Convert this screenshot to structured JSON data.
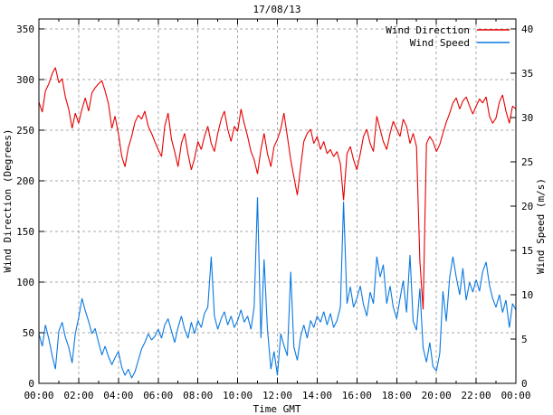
{
  "title": "17/08/13",
  "axes": {
    "x_label": "Time GMT",
    "y_left_label": "Wind Direction (Degrees)",
    "y_right_label": "Wind Speed (m/s)",
    "x_tick_hours": [
      0,
      2,
      4,
      6,
      8,
      10,
      12,
      14,
      16,
      18,
      20,
      22,
      24
    ],
    "x_tick_labels": [
      "00:00",
      "02:00",
      "04:00",
      "06:00",
      "08:00",
      "10:00",
      "12:00",
      "14:00",
      "16:00",
      "18:00",
      "20:00",
      "22:00",
      "00:00"
    ],
    "x_minor_tick_hours": [
      1,
      3,
      5,
      7,
      9,
      11,
      13,
      15,
      17,
      19,
      21,
      23
    ],
    "y_left_ticks": [
      0,
      50,
      100,
      150,
      200,
      250,
      300,
      350
    ],
    "y_right_ticks": [
      0,
      5,
      10,
      15,
      20,
      25,
      30,
      35,
      40
    ]
  },
  "colors": {
    "wind_direction": "#e60000",
    "wind_speed": "#0a78e0",
    "grid": "#a8a8a8",
    "border": "#000000",
    "background": "#ffffff",
    "text": "#000000"
  },
  "legend": {
    "position": "top-right",
    "entries": [
      {
        "label": "Wind Direction",
        "color": "#e60000"
      },
      {
        "label": "Wind Speed",
        "color": "#0a78e0"
      }
    ]
  },
  "chart_data": {
    "type": "line",
    "title": "17/08/13",
    "xlabel": "Time GMT",
    "ylabel_left": "Wind Direction (Degrees)",
    "ylabel_right": "Wind Speed (m/s)",
    "xlim_hours": [
      0,
      24
    ],
    "ylim_left": [
      0,
      350
    ],
    "ylim_right": [
      0,
      40
    ],
    "grid": true,
    "legend_position": "top-right",
    "x_hours": [
      0,
      0.17,
      0.33,
      0.5,
      0.67,
      0.83,
      1,
      1.17,
      1.33,
      1.5,
      1.67,
      1.83,
      2,
      2.17,
      2.33,
      2.5,
      2.67,
      2.83,
      3,
      3.17,
      3.33,
      3.5,
      3.67,
      3.83,
      4,
      4.17,
      4.33,
      4.5,
      4.67,
      4.83,
      5,
      5.17,
      5.33,
      5.5,
      5.67,
      5.83,
      6,
      6.17,
      6.33,
      6.5,
      6.67,
      6.83,
      7,
      7.17,
      7.33,
      7.5,
      7.67,
      7.83,
      8,
      8.17,
      8.33,
      8.5,
      8.67,
      8.83,
      9,
      9.17,
      9.33,
      9.5,
      9.67,
      9.83,
      10,
      10.17,
      10.33,
      10.5,
      10.67,
      10.83,
      11,
      11.17,
      11.33,
      11.5,
      11.67,
      11.83,
      12,
      12.17,
      12.33,
      12.5,
      12.67,
      12.83,
      13,
      13.17,
      13.33,
      13.5,
      13.67,
      13.83,
      14,
      14.17,
      14.33,
      14.5,
      14.67,
      14.83,
      15,
      15.17,
      15.33,
      15.5,
      15.67,
      15.83,
      16,
      16.17,
      16.33,
      16.5,
      16.67,
      16.83,
      17,
      17.17,
      17.33,
      17.5,
      17.67,
      17.83,
      18,
      18.17,
      18.33,
      18.5,
      18.67,
      18.83,
      19,
      19.17,
      19.33,
      19.5,
      19.67,
      19.83,
      20,
      20.17,
      20.33,
      20.5,
      20.67,
      20.83,
      21,
      21.17,
      21.33,
      21.5,
      21.67,
      21.83,
      22,
      22.17,
      22.33,
      22.5,
      22.67,
      22.83,
      23,
      23.17,
      23.33,
      23.5,
      23.67,
      23.83,
      24
    ],
    "series": [
      {
        "name": "Wind Direction",
        "axis": "left",
        "units": "degrees",
        "color": "#e60000",
        "values": [
          278,
          268,
          289,
          296,
          306,
          312,
          297,
          301,
          283,
          271,
          252,
          267,
          257,
          271,
          282,
          269,
          287,
          292,
          296,
          299,
          289,
          276,
          252,
          264,
          247,
          224,
          214,
          233,
          244,
          258,
          265,
          261,
          269,
          254,
          247,
          239,
          231,
          224,
          254,
          267,
          241,
          229,
          214,
          237,
          247,
          227,
          211,
          222,
          239,
          231,
          244,
          254,
          237,
          229,
          247,
          261,
          269,
          251,
          239,
          254,
          249,
          271,
          257,
          244,
          229,
          221,
          207,
          231,
          247,
          227,
          214,
          234,
          241,
          251,
          267,
          244,
          221,
          204,
          186,
          214,
          239,
          247,
          251,
          237,
          244,
          231,
          239,
          227,
          231,
          224,
          229,
          217,
          181,
          227,
          234,
          221,
          211,
          227,
          244,
          251,
          237,
          229,
          264,
          251,
          239,
          231,
          247,
          259,
          251,
          244,
          261,
          254,
          237,
          247,
          234,
          121,
          73,
          237,
          244,
          239,
          229,
          236,
          247,
          258,
          267,
          277,
          282,
          271,
          279,
          283,
          274,
          266,
          274,
          281,
          277,
          283,
          264,
          257,
          262,
          278,
          285,
          269,
          257,
          274,
          271
        ]
      },
      {
        "name": "Wind Speed",
        "axis": "right",
        "units": "m/s",
        "color": "#0a78e0",
        "values": [
          5.6,
          4.2,
          6.6,
          5.0,
          3.1,
          1.6,
          5.9,
          6.9,
          5.2,
          4.1,
          2.3,
          5.6,
          7.4,
          9.6,
          8.2,
          7.0,
          5.6,
          6.2,
          4.6,
          3.2,
          4.2,
          3.0,
          2.1,
          2.9,
          3.6,
          1.8,
          0.9,
          1.6,
          0.6,
          1.3,
          2.6,
          3.9,
          4.6,
          5.6,
          4.9,
          5.3,
          6.1,
          5.1,
          6.6,
          7.3,
          5.9,
          4.6,
          6.3,
          7.6,
          6.1,
          5.1,
          6.9,
          5.6,
          7.1,
          6.3,
          7.9,
          8.6,
          14.3,
          7.6,
          6.1,
          7.3,
          8.1,
          6.6,
          7.6,
          6.3,
          7.1,
          8.3,
          6.9,
          7.6,
          6.1,
          8.6,
          21.0,
          5.1,
          14.0,
          6.1,
          1.6,
          3.6,
          0.9,
          5.6,
          4.3,
          3.1,
          12.6,
          4.1,
          2.6,
          5.3,
          6.6,
          5.1,
          7.1,
          6.3,
          7.6,
          6.9,
          8.1,
          6.6,
          7.9,
          6.3,
          7.1,
          8.6,
          20.5,
          9.0,
          10.9,
          8.6,
          9.6,
          11.0,
          8.9,
          7.6,
          10.3,
          9.0,
          14.3,
          12.0,
          13.4,
          9.0,
          11.0,
          8.6,
          7.3,
          9.6,
          11.6,
          8.0,
          14.5,
          7.0,
          6.0,
          10.7,
          4.0,
          2.4,
          4.6,
          1.9,
          1.4,
          3.4,
          10.4,
          7.0,
          12.0,
          14.3,
          12.0,
          10.0,
          13.0,
          9.4,
          11.4,
          10.3,
          11.7,
          10.4,
          12.6,
          13.7,
          11.1,
          9.6,
          8.6,
          10.0,
          8.0,
          9.4,
          6.3,
          9.0,
          8.3
        ]
      }
    ]
  }
}
